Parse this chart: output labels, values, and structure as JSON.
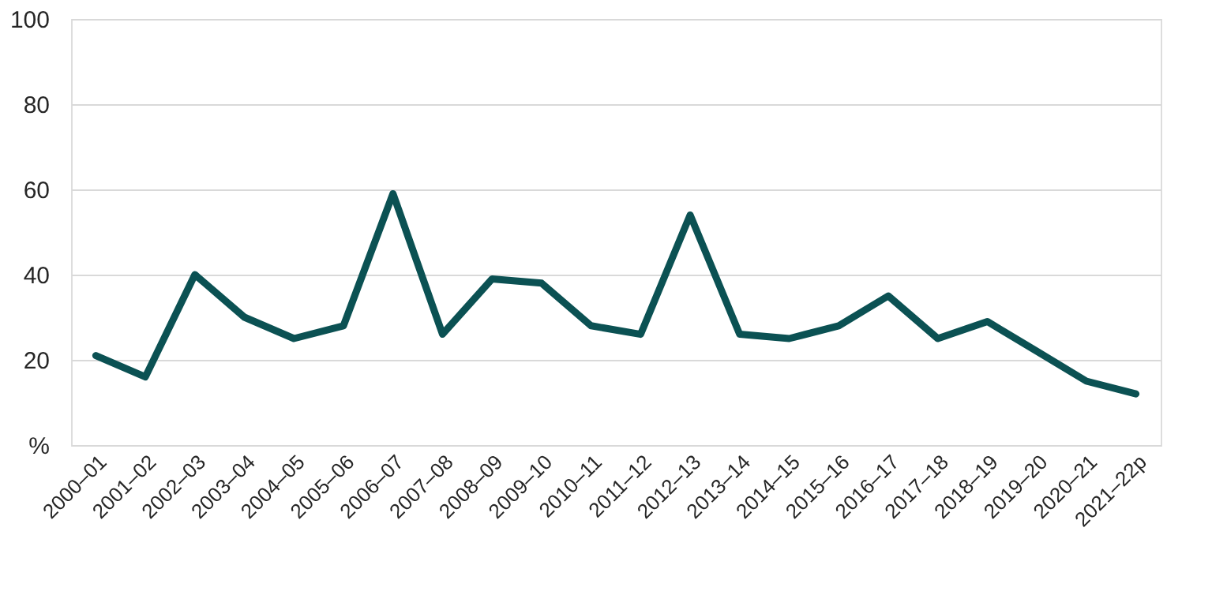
{
  "chart_data": {
    "type": "line",
    "categories": [
      "2000–01",
      "2001–02",
      "2002–03",
      "2003–04",
      "2004–05",
      "2005–06",
      "2006–07",
      "2007–08",
      "2008–09",
      "2009–10",
      "2010–11",
      "2011–12",
      "2012–13",
      "2013–14",
      "2014–15",
      "2015–16",
      "2016–17",
      "2017–18",
      "2018–19",
      "2019–20",
      "2020–21",
      "2021–22p"
    ],
    "series": [
      {
        "color": "#0b5153",
        "values": [
          21,
          16,
          40,
          30,
          25,
          28,
          59,
          26,
          39,
          38,
          28,
          26,
          54,
          26,
          25,
          28,
          35,
          25,
          29,
          22,
          15,
          12
        ]
      }
    ],
    "ylim": [
      0,
      100
    ],
    "yticks": [
      {
        "value": 0,
        "label": "%"
      },
      20,
      40,
      60,
      80,
      100
    ],
    "grid": "y",
    "marker": "none",
    "line_style": "solid"
  }
}
